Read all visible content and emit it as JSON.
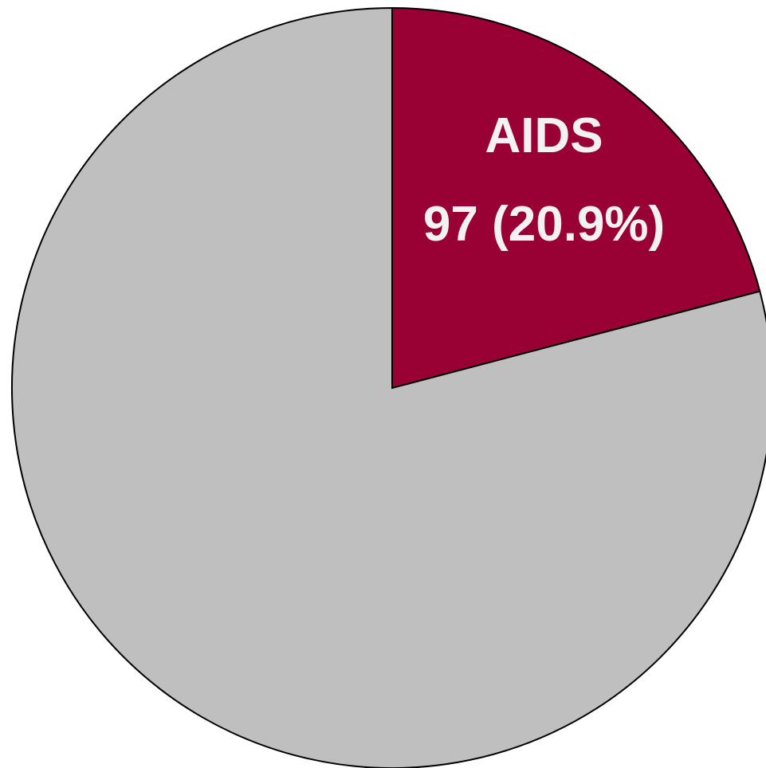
{
  "chart_data": {
    "type": "pie",
    "categories": [
      "AIDS",
      null
    ],
    "values": [
      97,
      367
    ],
    "value_labels": [
      "97 (20.9%)",
      null
    ],
    "colors": [
      "#990033",
      "#bfbfbf"
    ]
  }
}
